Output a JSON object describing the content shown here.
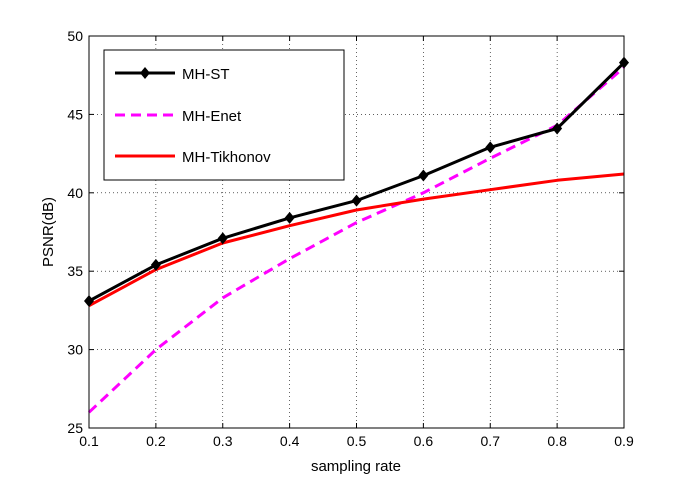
{
  "chart_data": {
    "type": "line",
    "xlabel": "sampling rate",
    "ylabel": "PSNR(dB)",
    "xlim": [
      0.1,
      0.9
    ],
    "ylim": [
      25,
      50
    ],
    "xticks": [
      "0.1",
      "0.2",
      "0.3",
      "0.4",
      "0.5",
      "0.6",
      "0.7",
      "0.8",
      "0.9"
    ],
    "yticks": [
      "25",
      "30",
      "35",
      "40",
      "45",
      "50"
    ],
    "grid": true,
    "legend_position": "top-left",
    "series": [
      {
        "name": "MH-ST",
        "color": "#000000",
        "style": "solid",
        "marker": "diamond",
        "x": [
          0.1,
          0.2,
          0.3,
          0.4,
          0.5,
          0.6,
          0.7,
          0.8,
          0.9
        ],
        "y": [
          33.1,
          35.4,
          37.1,
          38.4,
          39.5,
          41.1,
          42.9,
          44.1,
          48.3
        ]
      },
      {
        "name": "MH-Enet",
        "color": "#ff00ff",
        "style": "dashed",
        "marker": "none",
        "x": [
          0.1,
          0.2,
          0.3,
          0.4,
          0.5,
          0.6,
          0.7,
          0.8,
          0.9
        ],
        "y": [
          26.0,
          30.0,
          33.3,
          35.8,
          38.1,
          40.0,
          42.2,
          44.3,
          48.0
        ]
      },
      {
        "name": "MH-Tikhonov",
        "color": "#ff0000",
        "style": "solid",
        "marker": "none",
        "x": [
          0.1,
          0.2,
          0.3,
          0.4,
          0.5,
          0.6,
          0.7,
          0.8,
          0.9
        ],
        "y": [
          32.8,
          35.1,
          36.8,
          37.9,
          38.9,
          39.6,
          40.2,
          40.8,
          41.2
        ]
      }
    ]
  }
}
